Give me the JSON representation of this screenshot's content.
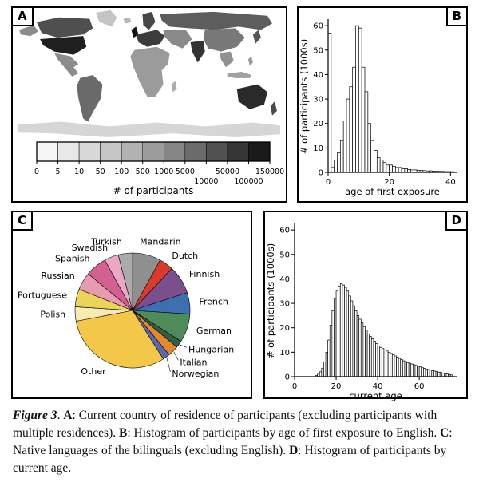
{
  "figure": {
    "panels": {
      "A": {
        "label": "A"
      },
      "B": {
        "label": "B"
      },
      "C": {
        "label": "C"
      },
      "D": {
        "label": "D"
      }
    }
  },
  "caption": {
    "segments": [
      {
        "text": "Figure 3",
        "bold": true,
        "italic": true
      },
      {
        "text": ". ",
        "bold": false,
        "italic": false
      },
      {
        "text": "A",
        "bold": true,
        "italic": false
      },
      {
        "text": ": Current country of residence of participants (excluding participants with multiple residences). ",
        "bold": false,
        "italic": false
      },
      {
        "text": "B",
        "bold": true,
        "italic": false
      },
      {
        "text": ": Histogram of participants by age of first exposure to English. ",
        "bold": false,
        "italic": false
      },
      {
        "text": "C",
        "bold": true,
        "italic": false
      },
      {
        "text": ": Native languages of the bilinguals (excluding English). ",
        "bold": false,
        "italic": false
      },
      {
        "text": "D",
        "bold": true,
        "italic": false
      },
      {
        "text": ": Histogram of participants by current age.",
        "bold": false,
        "italic": false
      }
    ]
  },
  "chart_data": [
    {
      "id": "A",
      "type": "map",
      "legend": {
        "label": "# of participants",
        "ticks": [
          "0",
          "5",
          "10",
          "50",
          "100",
          "500",
          "1000",
          "5000",
          "10000",
          "50000",
          "100000",
          "150000"
        ],
        "segment_colors": [
          "#f7f7f7",
          "#e8e8e8",
          "#d8d8d8",
          "#c6c6c6",
          "#b2b2b2",
          "#9c9c9c",
          "#858585",
          "#6b6b6b",
          "#515151",
          "#363636",
          "#1a1a1a"
        ]
      }
    },
    {
      "id": "B",
      "type": "bar",
      "subtype": "histogram",
      "xlabel": "age of first exposure",
      "ylabel": "# of participants (1000s)",
      "x_start": 0,
      "bin_width": 1,
      "xlim": [
        0,
        42
      ],
      "ylim": [
        0,
        62
      ],
      "yticks": [
        0,
        10,
        20,
        30,
        40,
        50,
        60
      ],
      "xticks": [
        0,
        20,
        40
      ],
      "values": [
        57,
        2,
        5,
        8,
        13,
        21,
        30,
        35,
        43,
        60,
        59,
        43,
        33,
        20,
        13,
        9,
        6,
        5,
        4,
        3,
        3,
        2.5,
        2,
        2,
        1.5,
        1.5,
        1.2,
        1,
        1,
        0.8,
        0.8,
        0.7,
        0.6,
        0.6,
        0.5,
        0.5,
        0.4,
        0.4,
        0.3,
        0.3,
        0.3
      ]
    },
    {
      "id": "C",
      "type": "pie",
      "slices": [
        {
          "label": "Mandarin",
          "value": 8,
          "color": "#8f8f8f"
        },
        {
          "label": "Dutch",
          "value": 4,
          "color": "#d93a2b"
        },
        {
          "label": "Finnish",
          "value": 8,
          "color": "#7a4f8c"
        },
        {
          "label": "French",
          "value": 6,
          "color": "#3e6fae"
        },
        {
          "label": "German",
          "value": 8,
          "color": "#4e8a5a"
        },
        {
          "label": "Hungarian",
          "value": 2,
          "color": "#2f6043"
        },
        {
          "label": "Italian",
          "value": 3,
          "color": "#e2882f"
        },
        {
          "label": "Norwegian",
          "value": 2,
          "color": "#5b68b0"
        },
        {
          "label": "Other",
          "value": 31,
          "color": "#f3c84a"
        },
        {
          "label": "Polish",
          "value": 4,
          "color": "#f7eab2"
        },
        {
          "label": "Portuguese",
          "value": 5,
          "color": "#ead45c"
        },
        {
          "label": "Russian",
          "value": 5,
          "color": "#e79ab0"
        },
        {
          "label": "Spanish",
          "value": 6,
          "color": "#d2618f"
        },
        {
          "label": "Swedish",
          "value": 4,
          "color": "#eaa8c6"
        },
        {
          "label": "Turkish",
          "value": 4,
          "color": "#ababab"
        }
      ]
    },
    {
      "id": "D",
      "type": "bar",
      "subtype": "histogram",
      "xlabel": "current age",
      "ylabel": "# of participants (1000s)",
      "x_start": 10,
      "bin_width": 1,
      "xlim": [
        0,
        78
      ],
      "ylim": [
        0,
        62
      ],
      "yticks": [
        0,
        10,
        20,
        30,
        40,
        50,
        60
      ],
      "xticks": [
        0,
        20,
        40,
        60
      ],
      "values": [
        0.5,
        1,
        2,
        3.5,
        6,
        10,
        15,
        21,
        27,
        32,
        35,
        37,
        38,
        37.5,
        36.5,
        35,
        33,
        31,
        29,
        27,
        25,
        23.5,
        22,
        20.5,
        19,
        17.5,
        16.5,
        15.5,
        14.5,
        13.5,
        12.5,
        12,
        11.5,
        11,
        10.5,
        10,
        9.5,
        9,
        8.5,
        8,
        7.5,
        7,
        6.5,
        6.2,
        5.8,
        5.5,
        5.2,
        4.9,
        4.6,
        4.3,
        4,
        3.7,
        3.4,
        3.1,
        2.9,
        2.7,
        2.5,
        2.3,
        2.1,
        1.9,
        1.7,
        1.5,
        1.3,
        1.1,
        0.9,
        0.7
      ]
    }
  ]
}
